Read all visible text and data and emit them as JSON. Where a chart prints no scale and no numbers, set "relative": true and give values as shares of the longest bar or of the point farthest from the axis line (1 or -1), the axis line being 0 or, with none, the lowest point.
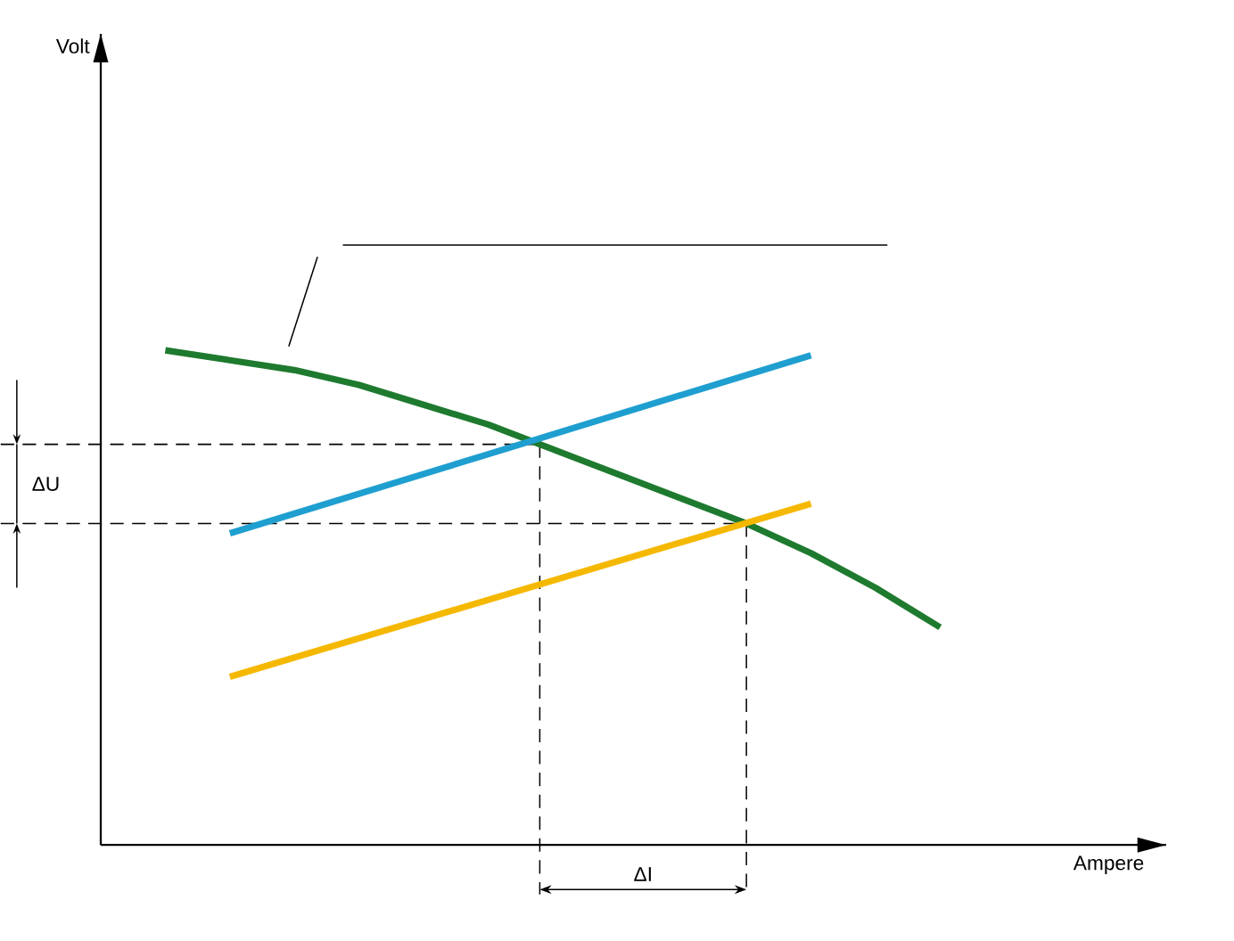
{
  "chart_data": {
    "type": "line",
    "relative": true,
    "categories": [
      null,
      null,
      null,
      null,
      null,
      null,
      null,
      null,
      null,
      null,
      null,
      null,
      null
    ],
    "series": [
      {
        "color": "#1e7a2e",
        "values": [
          1,
          0.98,
          0.96,
          0.93,
          0.89,
          0.85,
          0.8,
          0.75,
          0.7,
          0.65,
          0.59,
          0.52,
          0.44
        ]
      },
      {
        "color": "#1e9fd0",
        "values": [
          null,
          0.63,
          null,
          null,
          null,
          null,
          null,
          null,
          null,
          null,
          0.99,
          null,
          null
        ]
      },
      {
        "color": "#f5b800",
        "values": [
          null,
          0.34,
          null,
          null,
          null,
          null,
          null,
          null,
          null,
          null,
          0.69,
          null,
          null
        ]
      }
    ],
    "ref_lines": [
      {
        "axis": "y",
        "value": 0.81,
        "line_style": "dashed"
      },
      {
        "axis": "y",
        "value": 0.65,
        "line_style": "dashed"
      }
    ],
    "annotations": [
      "ΔU",
      "ΔI",
      "Volt",
      "Ampere"
    ],
    "marker": "none",
    "line_style": "solid"
  }
}
